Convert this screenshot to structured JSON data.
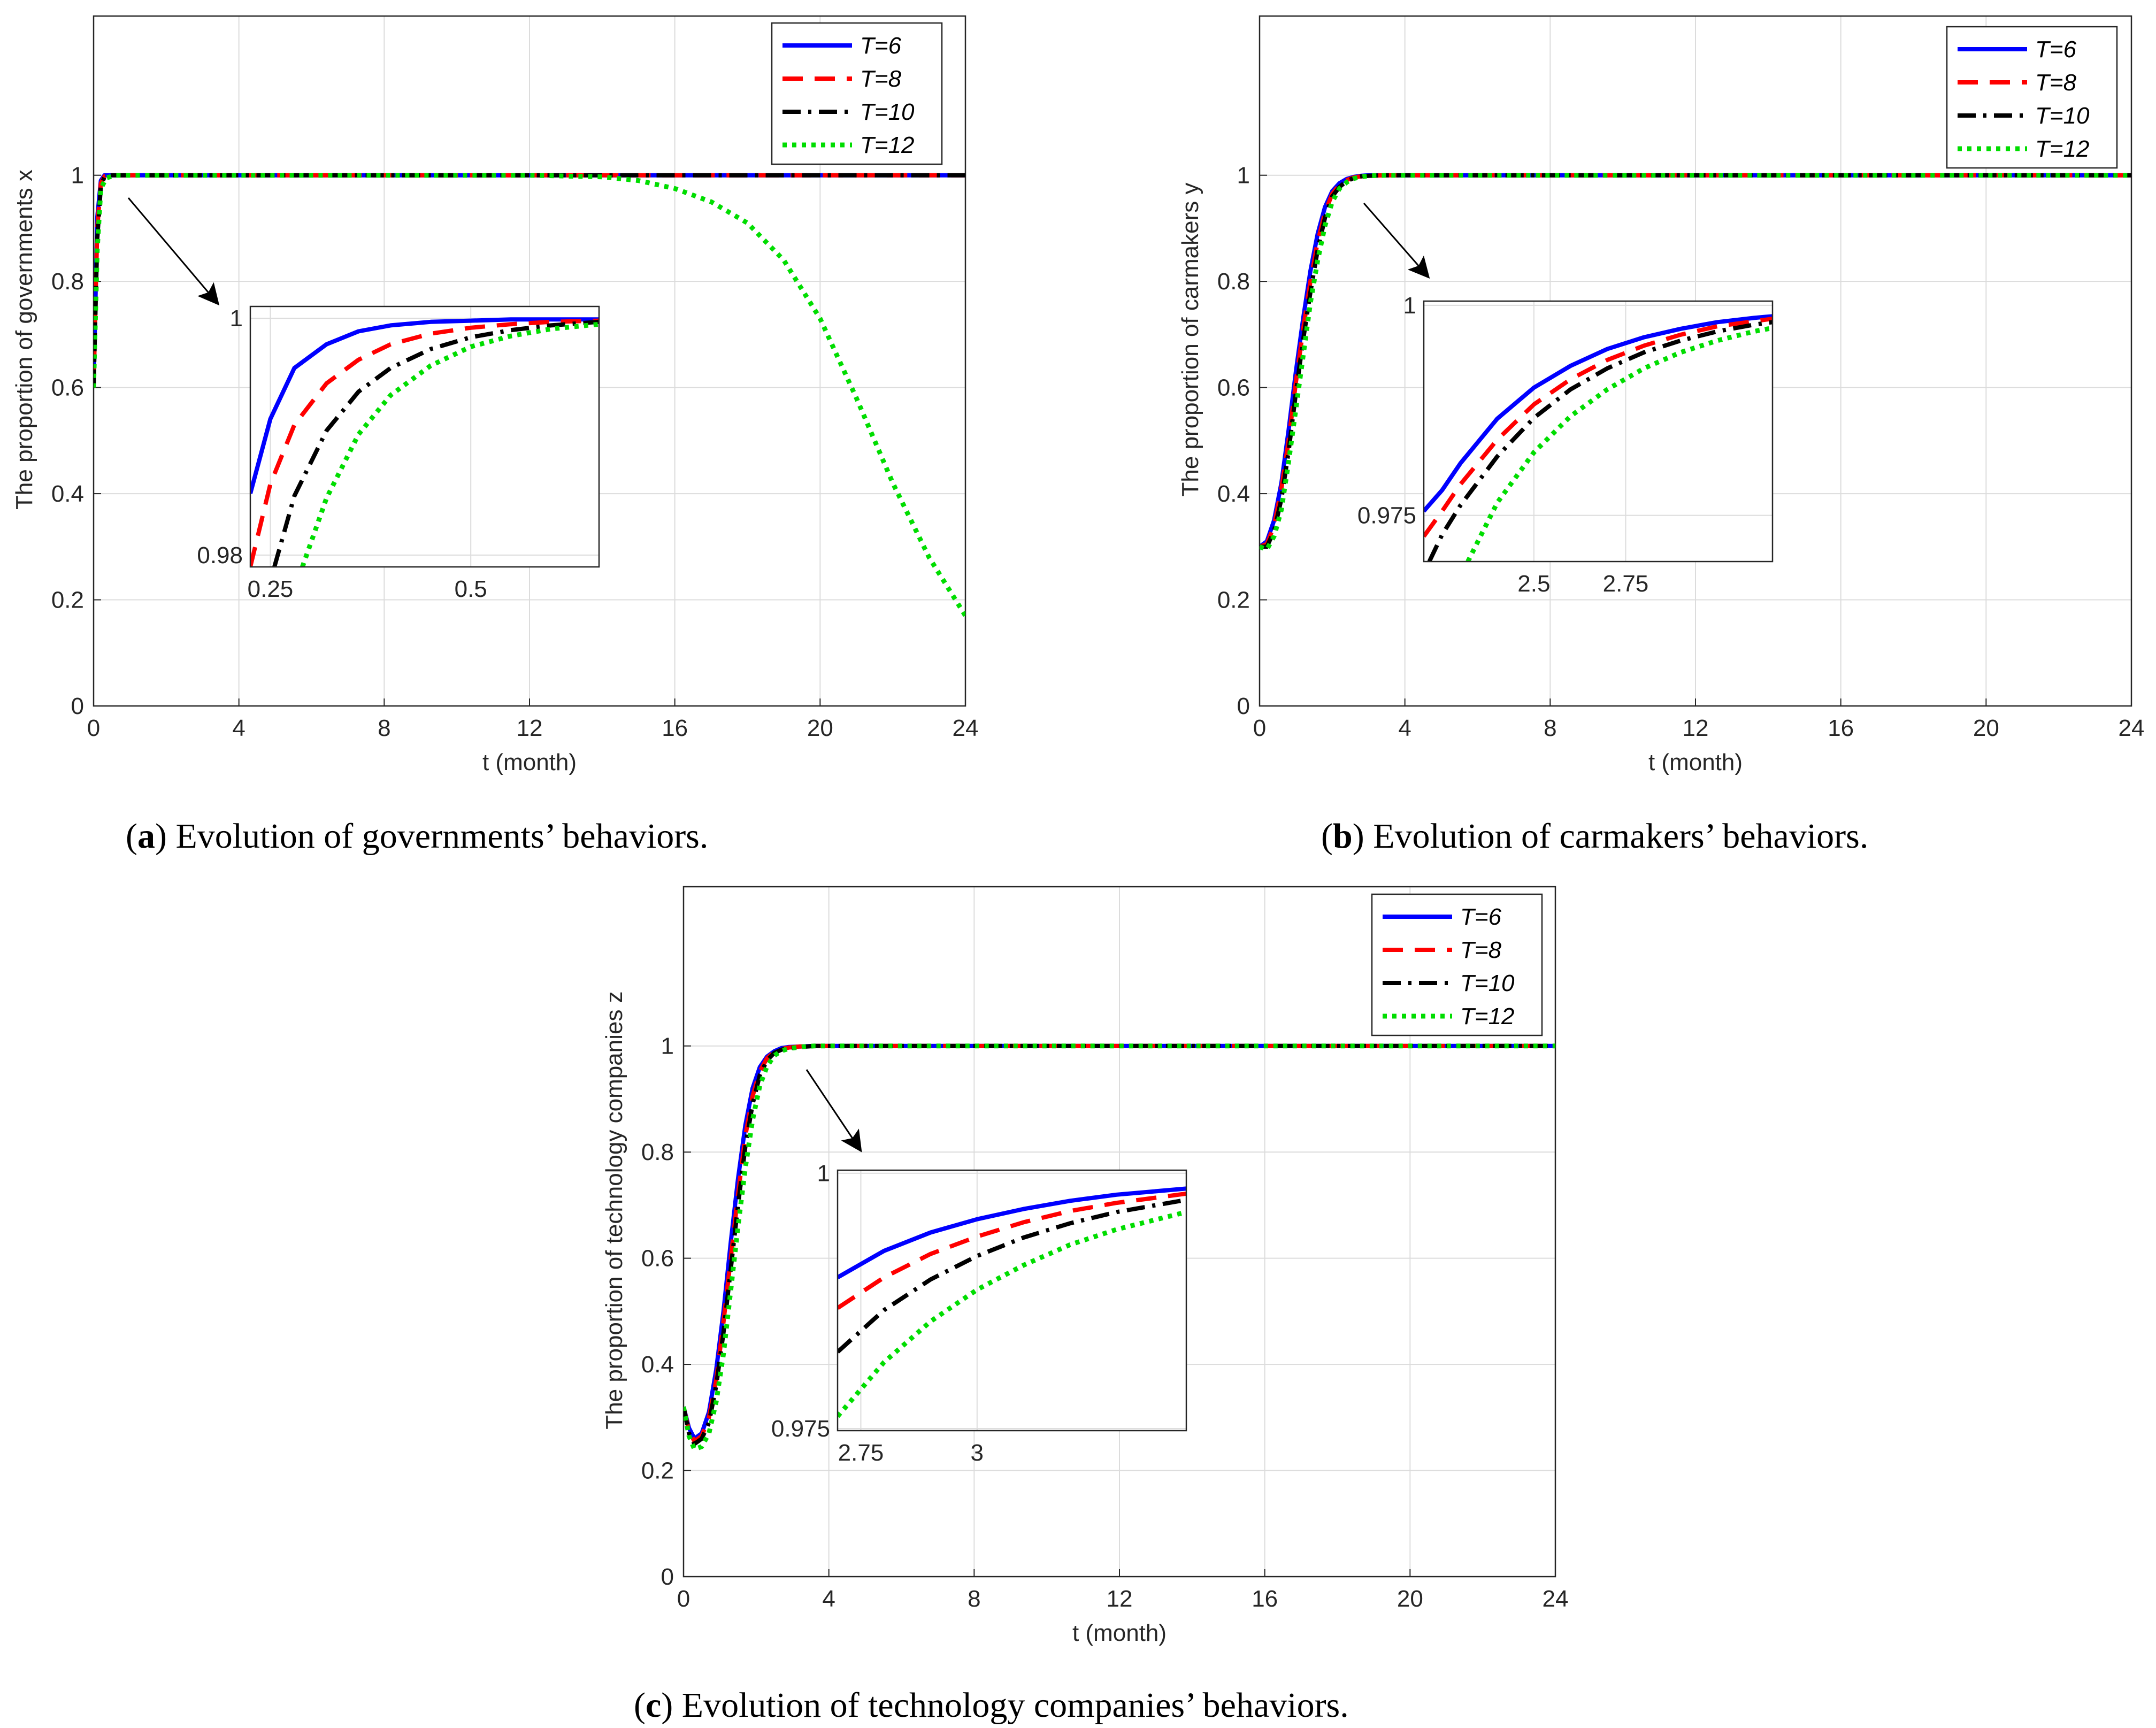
{
  "legend": [
    "T=6",
    "T=8",
    "T=10",
    "T=12"
  ],
  "colors": {
    "T6": "#0000ff",
    "T8": "#ff0000",
    "T10": "#000000",
    "T12": "#00dd00"
  },
  "captions": [
    {
      "label": "a",
      "text": "Evolution of governments’ behaviors."
    },
    {
      "label": "b",
      "text": "Evolution of carmakers’ behaviors."
    },
    {
      "label": "c",
      "text": "Evolution of technology companies’ behaviors."
    }
  ],
  "chart_data": [
    {
      "id": "a",
      "type": "line",
      "title": "",
      "xlabel": "t (month)",
      "ylabel": "The proportion of governments x",
      "xlim": [
        0,
        24
      ],
      "ylim": [
        0,
        1.3
      ],
      "xticks": [
        "0",
        "4",
        "8",
        "12",
        "16",
        "20",
        "24"
      ],
      "yticks": [
        "0",
        "0.2",
        "0.4",
        "0.6",
        "0.8",
        "1"
      ],
      "grid": true,
      "legend_position": "top-right",
      "series": [
        {
          "name": "T=6",
          "x": [
            0,
            0.1,
            0.2,
            0.3,
            0.5,
            1,
            24
          ],
          "y": [
            0.6,
            0.92,
            0.99,
            1.0,
            1.0,
            1.0,
            1.0
          ]
        },
        {
          "name": "T=8",
          "x": [
            0,
            0.1,
            0.2,
            0.3,
            0.5,
            1,
            24
          ],
          "y": [
            0.6,
            0.9,
            0.985,
            0.998,
            1.0,
            1.0,
            1.0
          ]
        },
        {
          "name": "T=10",
          "x": [
            0,
            0.1,
            0.2,
            0.3,
            0.5,
            1,
            24
          ],
          "y": [
            0.6,
            0.88,
            0.98,
            0.997,
            1.0,
            1.0,
            1.0
          ]
        },
        {
          "name": "T=12",
          "x": [
            0,
            0.1,
            0.2,
            0.35,
            0.6,
            1,
            12,
            14,
            15,
            16,
            17,
            18,
            19,
            20,
            21,
            22,
            23,
            24
          ],
          "y": [
            0.6,
            0.86,
            0.975,
            0.995,
            1.0,
            1.0,
            1.0,
            0.997,
            0.99,
            0.975,
            0.95,
            0.91,
            0.84,
            0.73,
            0.58,
            0.42,
            0.28,
            0.17
          ]
        }
      ],
      "inset": {
        "xlim": [
          0.225,
          0.66
        ],
        "ylim": [
          0.979,
          1.001
        ],
        "xticks": [
          "0.25",
          "0.5"
        ],
        "yticks": [
          "0.98",
          "1"
        ],
        "series": [
          {
            "name": "T=6",
            "x": [
              0.225,
              0.25,
              0.28,
              0.32,
              0.36,
              0.4,
              0.45,
              0.5,
              0.55,
              0.6,
              0.66
            ],
            "y": [
              0.9852,
              0.9915,
              0.9958,
              0.9978,
              0.9989,
              0.9994,
              0.9997,
              0.9998,
              0.9999,
              0.9999,
              0.9999
            ]
          },
          {
            "name": "T=8",
            "x": [
              0.225,
              0.25,
              0.28,
              0.32,
              0.36,
              0.4,
              0.45,
              0.5,
              0.55,
              0.6,
              0.66
            ],
            "y": [
              0.979,
              0.986,
              0.991,
              0.9945,
              0.9965,
              0.9978,
              0.9987,
              0.9992,
              0.9995,
              0.9997,
              0.9998
            ]
          },
          {
            "name": "T=10",
            "x": [
              0.255,
              0.28,
              0.32,
              0.36,
              0.4,
              0.45,
              0.5,
              0.55,
              0.6,
              0.66
            ],
            "y": [
              0.979,
              0.985,
              0.9905,
              0.9938,
              0.9958,
              0.9974,
              0.9984,
              0.999,
              0.9994,
              0.9997
            ]
          },
          {
            "name": "T=12",
            "x": [
              0.29,
              0.32,
              0.36,
              0.4,
              0.45,
              0.5,
              0.55,
              0.6,
              0.66
            ],
            "y": [
              0.979,
              0.9848,
              0.9902,
              0.9935,
              0.996,
              0.9976,
              0.9985,
              0.9991,
              0.9995
            ]
          }
        ]
      }
    },
    {
      "id": "b",
      "type": "line",
      "title": "",
      "xlabel": "t (month)",
      "ylabel": "The proportion of carmakers y",
      "xlim": [
        0,
        24
      ],
      "ylim": [
        0,
        1.3
      ],
      "xticks": [
        "0",
        "4",
        "8",
        "12",
        "16",
        "20",
        "24"
      ],
      "yticks": [
        "0",
        "0.2",
        "0.4",
        "0.6",
        "0.8",
        "1"
      ],
      "grid": true,
      "legend_position": "top-right",
      "series": [
        {
          "name": "T=6",
          "x": [
            0,
            0.2,
            0.4,
            0.6,
            0.8,
            1.0,
            1.2,
            1.4,
            1.6,
            1.8,
            2.0,
            2.2,
            2.4,
            2.6,
            2.8,
            3.0,
            3.5,
            24
          ],
          "y": [
            0.3,
            0.31,
            0.35,
            0.42,
            0.52,
            0.63,
            0.73,
            0.82,
            0.89,
            0.94,
            0.97,
            0.985,
            0.993,
            0.997,
            0.999,
            1.0,
            1.0,
            1.0
          ]
        },
        {
          "name": "T=8",
          "x": [
            0,
            0.2,
            0.4,
            0.6,
            0.8,
            1.0,
            1.2,
            1.4,
            1.6,
            1.8,
            2.0,
            2.2,
            2.4,
            2.6,
            2.8,
            3.0,
            3.5,
            24
          ],
          "y": [
            0.3,
            0.305,
            0.34,
            0.41,
            0.5,
            0.61,
            0.71,
            0.8,
            0.875,
            0.93,
            0.965,
            0.982,
            0.991,
            0.996,
            0.998,
            0.999,
            1.0,
            1.0
          ]
        },
        {
          "name": "T=10",
          "x": [
            0,
            0.2,
            0.4,
            0.6,
            0.8,
            1.0,
            1.2,
            1.4,
            1.6,
            1.8,
            2.0,
            2.2,
            2.4,
            2.6,
            2.8,
            3.0,
            3.5,
            24
          ],
          "y": [
            0.3,
            0.3,
            0.33,
            0.39,
            0.48,
            0.59,
            0.69,
            0.78,
            0.86,
            0.92,
            0.96,
            0.978,
            0.989,
            0.995,
            0.998,
            0.999,
            1.0,
            1.0
          ]
        },
        {
          "name": "T=12",
          "x": [
            0,
            0.2,
            0.4,
            0.6,
            0.8,
            1.0,
            1.2,
            1.4,
            1.6,
            1.8,
            2.0,
            2.2,
            2.4,
            2.6,
            2.8,
            3.0,
            3.5,
            24
          ],
          "y": [
            0.3,
            0.295,
            0.32,
            0.37,
            0.46,
            0.56,
            0.66,
            0.76,
            0.84,
            0.905,
            0.95,
            0.975,
            0.987,
            0.994,
            0.997,
            0.999,
            1.0,
            1.0
          ]
        }
      ],
      "inset": {
        "xlim": [
          2.2,
          3.15
        ],
        "ylim": [
          0.9695,
          1.0005
        ],
        "xticks": [
          "2.5",
          "2.75"
        ],
        "yticks": [
          "0.975",
          "1"
        ],
        "series": [
          {
            "name": "T=6",
            "x": [
              2.2,
              2.25,
              2.3,
              2.4,
              2.5,
              2.6,
              2.7,
              2.8,
              2.9,
              3.0,
              3.1,
              3.15
            ],
            "y": [
              0.9755,
              0.978,
              0.9812,
              0.9865,
              0.9902,
              0.9928,
              0.9948,
              0.9962,
              0.9972,
              0.998,
              0.9985,
              0.9987
            ]
          },
          {
            "name": "T=8",
            "x": [
              2.2,
              2.25,
              2.3,
              2.4,
              2.5,
              2.6,
              2.7,
              2.8,
              2.9,
              3.0,
              3.1,
              3.15
            ],
            "y": [
              0.9725,
              0.9755,
              0.9787,
              0.984,
              0.9882,
              0.9912,
              0.9935,
              0.9952,
              0.9965,
              0.9975,
              0.9981,
              0.9984
            ]
          },
          {
            "name": "T=10",
            "x": [
              2.215,
              2.25,
              2.3,
              2.4,
              2.5,
              2.6,
              2.7,
              2.8,
              2.9,
              3.0,
              3.1,
              3.15
            ],
            "y": [
              0.9695,
              0.9727,
              0.9762,
              0.982,
              0.9866,
              0.99,
              0.9925,
              0.9944,
              0.9958,
              0.9969,
              0.9977,
              0.998
            ]
          },
          {
            "name": "T=12",
            "x": [
              2.32,
              2.4,
              2.5,
              2.6,
              2.7,
              2.8,
              2.9,
              3.0,
              3.1,
              3.15
            ],
            "y": [
              0.9695,
              0.9765,
              0.9825,
              0.9868,
              0.99,
              0.9925,
              0.9944,
              0.9958,
              0.9969,
              0.9973
            ]
          }
        ]
      }
    },
    {
      "id": "c",
      "type": "line",
      "title": "",
      "xlabel": "t (month)",
      "ylabel": "The proportion of technology companies z",
      "xlim": [
        0,
        24
      ],
      "ylim": [
        0,
        1.3
      ],
      "xticks": [
        "0",
        "4",
        "8",
        "12",
        "16",
        "20",
        "24"
      ],
      "yticks": [
        "0",
        "0.2",
        "0.4",
        "0.6",
        "0.8",
        "1"
      ],
      "grid": true,
      "legend_position": "top-right",
      "series": [
        {
          "name": "T=6",
          "x": [
            0,
            0.15,
            0.3,
            0.5,
            0.7,
            0.9,
            1.1,
            1.3,
            1.5,
            1.7,
            1.9,
            2.1,
            2.3,
            2.5,
            2.7,
            2.9,
            3.2,
            3.6,
            24
          ],
          "y": [
            0.32,
            0.28,
            0.26,
            0.27,
            0.31,
            0.39,
            0.5,
            0.63,
            0.75,
            0.85,
            0.92,
            0.96,
            0.98,
            0.99,
            0.996,
            0.998,
            0.999,
            1.0,
            1.0
          ]
        },
        {
          "name": "T=8",
          "x": [
            0,
            0.15,
            0.3,
            0.5,
            0.7,
            0.9,
            1.1,
            1.3,
            1.5,
            1.7,
            1.9,
            2.1,
            2.3,
            2.5,
            2.7,
            2.9,
            3.2,
            3.6,
            24
          ],
          "y": [
            0.32,
            0.275,
            0.255,
            0.265,
            0.3,
            0.37,
            0.48,
            0.6,
            0.72,
            0.83,
            0.905,
            0.952,
            0.977,
            0.989,
            0.994,
            0.997,
            0.999,
            1.0,
            1.0
          ]
        },
        {
          "name": "T=10",
          "x": [
            0,
            0.15,
            0.3,
            0.5,
            0.7,
            0.9,
            1.1,
            1.3,
            1.5,
            1.7,
            1.9,
            2.1,
            2.3,
            2.5,
            2.7,
            2.9,
            3.2,
            3.6,
            24
          ],
          "y": [
            0.32,
            0.27,
            0.25,
            0.26,
            0.29,
            0.36,
            0.46,
            0.58,
            0.7,
            0.81,
            0.89,
            0.945,
            0.973,
            0.987,
            0.993,
            0.996,
            0.998,
            1.0,
            1.0
          ]
        },
        {
          "name": "T=12",
          "x": [
            0,
            0.15,
            0.3,
            0.5,
            0.7,
            0.9,
            1.1,
            1.3,
            1.5,
            1.7,
            1.9,
            2.1,
            2.3,
            2.5,
            2.7,
            2.9,
            3.2,
            3.6,
            24
          ],
          "y": [
            0.32,
            0.265,
            0.24,
            0.245,
            0.27,
            0.33,
            0.42,
            0.54,
            0.66,
            0.77,
            0.86,
            0.925,
            0.962,
            0.982,
            0.991,
            0.995,
            0.998,
            1.0,
            1.0
          ]
        }
      ],
      "inset": {
        "xlim": [
          2.7,
          3.45
        ],
        "ylim": [
          0.9748,
          1.0003
        ],
        "xticks": [
          "2.75",
          "3"
        ],
        "yticks": [
          "0.975",
          "1"
        ],
        "series": [
          {
            "name": "T=6",
            "x": [
              2.7,
              2.8,
              2.9,
              3.0,
              3.1,
              3.2,
              3.3,
              3.45
            ],
            "y": [
              0.9898,
              0.9924,
              0.9942,
              0.9955,
              0.9965,
              0.9973,
              0.9979,
              0.9985
            ]
          },
          {
            "name": "T=8",
            "x": [
              2.7,
              2.8,
              2.9,
              3.0,
              3.1,
              3.2,
              3.3,
              3.45
            ],
            "y": [
              0.9868,
              0.9898,
              0.9921,
              0.9938,
              0.9952,
              0.9963,
              0.9971,
              0.998
            ]
          },
          {
            "name": "T=10",
            "x": [
              2.7,
              2.8,
              2.9,
              3.0,
              3.1,
              3.2,
              3.3,
              3.45
            ],
            "y": [
              0.9825,
              0.9866,
              0.9896,
              0.9919,
              0.9937,
              0.9951,
              0.9962,
              0.9974
            ]
          },
          {
            "name": "T=12",
            "x": [
              2.7,
              2.8,
              2.9,
              3.0,
              3.1,
              3.2,
              3.3,
              3.45
            ],
            "y": [
              0.9762,
              0.9815,
              0.9855,
              0.9886,
              0.991,
              0.993,
              0.9945,
              0.9962
            ]
          }
        ]
      }
    }
  ]
}
